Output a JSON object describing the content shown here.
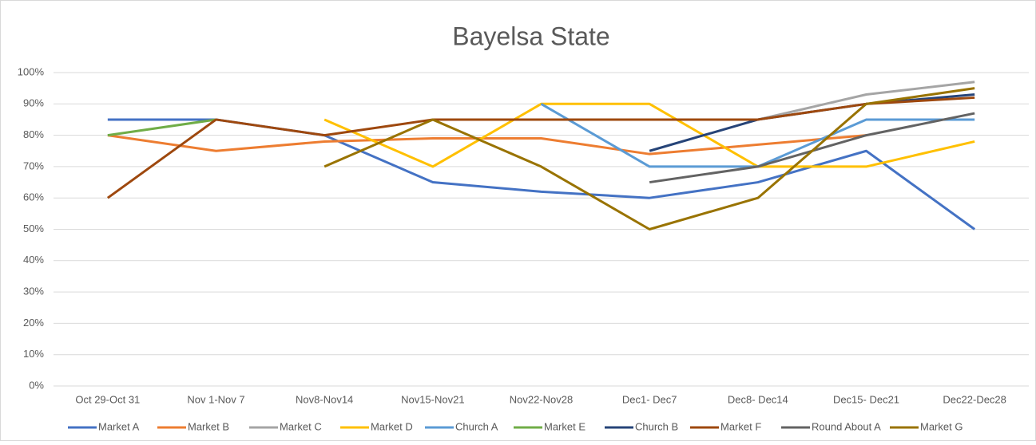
{
  "chart_data": {
    "type": "line",
    "title": "Bayelsa State",
    "categories": [
      "Oct 29-Oct 31",
      "Nov 1-Nov 7",
      "Nov8-Nov14",
      "Nov15-Nov21",
      "Nov22-Nov28",
      "Dec1- Dec7",
      "Dec8- Dec14",
      "Dec15- Dec21",
      "Dec22-Dec28"
    ],
    "series": [
      {
        "name": "Market A",
        "color": "#4472c4",
        "values": [
          85,
          85,
          80,
          65,
          62,
          60,
          65,
          75,
          50
        ]
      },
      {
        "name": "Market B",
        "color": "#ed7d31",
        "values": [
          80,
          75,
          78,
          79,
          79,
          74,
          77,
          80,
          null
        ]
      },
      {
        "name": "Market C",
        "color": "#a5a5a5",
        "values": [
          null,
          null,
          null,
          null,
          null,
          null,
          85,
          93,
          97
        ]
      },
      {
        "name": "Market D",
        "color": "#ffc000",
        "values": [
          null,
          null,
          85,
          70,
          90,
          90,
          70,
          70,
          78
        ]
      },
      {
        "name": "Church A",
        "color": "#5b9bd5",
        "values": [
          null,
          null,
          null,
          null,
          90,
          70,
          70,
          85,
          85
        ]
      },
      {
        "name": "Market E",
        "color": "#70ad47",
        "values": [
          80,
          85,
          null,
          null,
          null,
          null,
          null,
          null,
          null
        ]
      },
      {
        "name": "Church B",
        "color": "#264478",
        "values": [
          null,
          null,
          null,
          null,
          null,
          75,
          85,
          90,
          93
        ]
      },
      {
        "name": "Market F",
        "color": "#9e480e",
        "values": [
          60,
          85,
          80,
          85,
          85,
          85,
          85,
          90,
          92
        ]
      },
      {
        "name": "Round About A",
        "color": "#636363",
        "values": [
          null,
          null,
          null,
          null,
          null,
          65,
          70,
          80,
          87
        ]
      },
      {
        "name": "Market G",
        "color": "#997300",
        "values": [
          null,
          null,
          70,
          85,
          70,
          50,
          60,
          90,
          95
        ]
      }
    ],
    "ylim": [
      0,
      100
    ],
    "yticks": [
      {
        "value": 0,
        "label": "0%"
      },
      {
        "value": 10,
        "label": "10%"
      },
      {
        "value": 20,
        "label": "20%"
      },
      {
        "value": 30,
        "label": "30%"
      },
      {
        "value": 40,
        "label": "40%"
      },
      {
        "value": 50,
        "label": "50%"
      },
      {
        "value": 60,
        "label": "60%"
      },
      {
        "value": 70,
        "label": "70%"
      },
      {
        "value": 80,
        "label": "80%"
      },
      {
        "value": 90,
        "label": "90%"
      },
      {
        "value": 100,
        "label": "100%"
      }
    ],
    "grid": true,
    "legend": "bottom"
  }
}
